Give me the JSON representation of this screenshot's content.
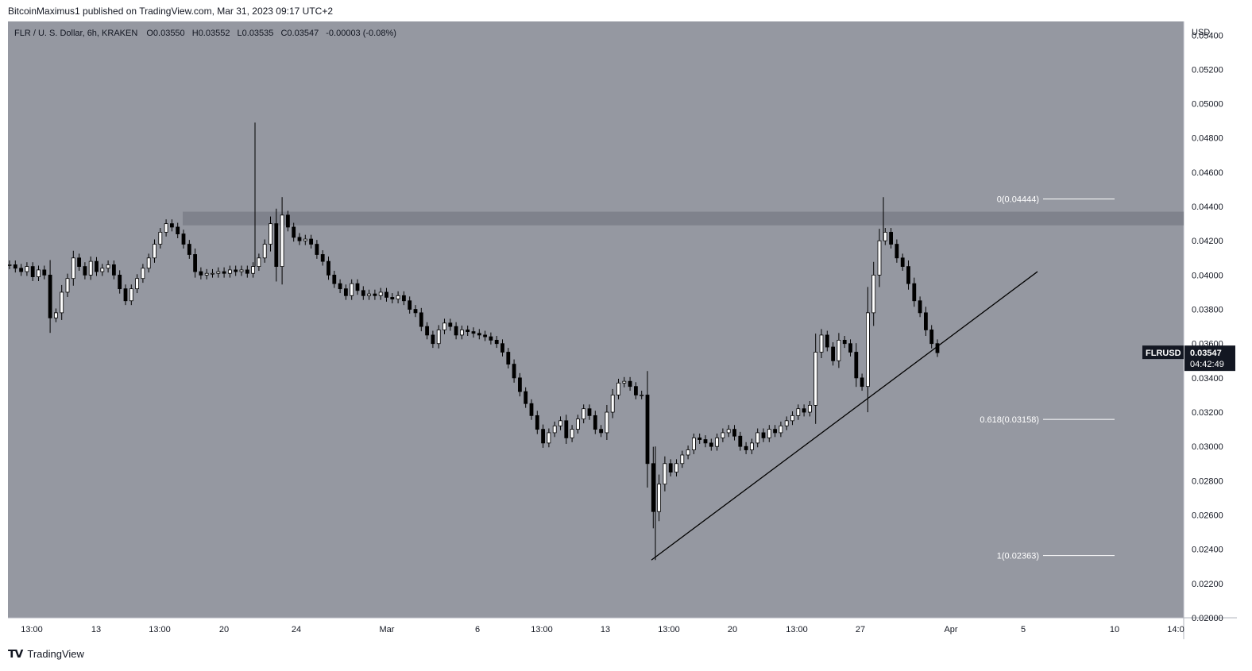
{
  "header": {
    "published": "BitcoinMaximus1 published on TradingView.com, Mar 31, 2023 09:17 UTC+2"
  },
  "footer": {
    "brand": "TradingView",
    "logo_icon": "tradingview-logo-icon"
  },
  "colors": {
    "background": "#9598a1",
    "candle": "#000000",
    "resistance_zone": "#787b86",
    "trendline": "#000000",
    "fib_line": "#ffffff",
    "price_tag": "#131722"
  },
  "chart_data": {
    "type": "candlestick",
    "legend": "FLR / U. S. Dollar, 6h, KRAKEN",
    "ohlc": {
      "o_label": "O",
      "o": "0.03550",
      "h_label": "H",
      "h": "0.03552",
      "l_label": "L",
      "l": "0.03535",
      "c_label": "C",
      "c": "0.03547",
      "change": "-0.00003 (-0.08%)"
    },
    "currency": "USD",
    "symbol": "FLRUSD",
    "last_price": "0.03547",
    "countdown": "04:42:49",
    "ylim": [
      0.02,
      0.0548
    ],
    "y_ticks": [
      "0.05400",
      "0.05200",
      "0.05000",
      "0.04800",
      "0.04600",
      "0.04400",
      "0.04200",
      "0.04000",
      "0.03800",
      "0.03600",
      "0.03400",
      "0.03200",
      "0.03000",
      "0.02800",
      "0.02600",
      "0.02400",
      "0.02200",
      "0.02000"
    ],
    "x_ticks": [
      "13:00",
      "13",
      "13:00",
      "20",
      "24",
      "Mar",
      "6",
      "13:00",
      "13",
      "13:00",
      "20",
      "13:00",
      "27",
      "Apr",
      "5",
      "10",
      "14:0"
    ],
    "resistance_zone": [
      0.0429,
      0.0437
    ],
    "trendline": {
      "from": 0.02337,
      "to": 0.0402
    },
    "fibonacci": [
      {
        "label": "0(0.04444)",
        "value": 0.04444
      },
      {
        "label": "0.618(0.03158)",
        "value": 0.03158
      },
      {
        "label": "1(0.02363)",
        "value": 0.02363
      }
    ],
    "price_points": [
      0.0406,
      0.0404,
      0.0402,
      0.0405,
      0.0399,
      0.0403,
      0.04,
      0.0375,
      0.0378,
      0.039,
      0.0398,
      0.041,
      0.0405,
      0.04,
      0.0408,
      0.0402,
      0.0404,
      0.0406,
      0.04,
      0.0392,
      0.0385,
      0.0392,
      0.0398,
      0.0404,
      0.041,
      0.0418,
      0.0425,
      0.043,
      0.0428,
      0.0424,
      0.0418,
      0.0412,
      0.0402,
      0.04,
      0.0401,
      0.0401,
      0.0402,
      0.0401,
      0.0403,
      0.0402,
      0.0403,
      0.0401,
      0.0405,
      0.041,
      0.0418,
      0.043,
      0.0405,
      0.0435,
      0.0428,
      0.0422,
      0.042,
      0.0421,
      0.0418,
      0.0412,
      0.0408,
      0.04,
      0.0395,
      0.0392,
      0.0388,
      0.0395,
      0.0391,
      0.0388,
      0.0389,
      0.0388,
      0.039,
      0.0387,
      0.0386,
      0.0388,
      0.0385,
      0.038,
      0.0378,
      0.037,
      0.0365,
      0.036,
      0.0368,
      0.0372,
      0.037,
      0.0365,
      0.0368,
      0.0367,
      0.0366,
      0.0365,
      0.0364,
      0.0362,
      0.036,
      0.0355,
      0.0348,
      0.034,
      0.0332,
      0.0325,
      0.0318,
      0.031,
      0.0302,
      0.0308,
      0.0312,
      0.0315,
      0.0305,
      0.031,
      0.0316,
      0.0322,
      0.0318,
      0.031,
      0.0308,
      0.032,
      0.033,
      0.0337,
      0.0338,
      0.0335,
      0.033,
      0.033,
      0.029,
      0.0262,
      0.0278,
      0.029,
      0.0285,
      0.029,
      0.0295,
      0.0298,
      0.0305,
      0.0304,
      0.0302,
      0.03,
      0.0305,
      0.0308,
      0.031,
      0.0306,
      0.03,
      0.0298,
      0.0302,
      0.0308,
      0.0305,
      0.031,
      0.0308,
      0.0312,
      0.0315,
      0.0318,
      0.0322,
      0.032,
      0.0324,
      0.0355,
      0.0365,
      0.0358,
      0.035,
      0.0362,
      0.036,
      0.0355,
      0.034,
      0.0335,
      0.0378,
      0.04,
      0.042,
      0.0425,
      0.0418,
      0.041,
      0.0405,
      0.0395,
      0.0385,
      0.0378,
      0.0368,
      0.036,
      0.03547
    ]
  }
}
